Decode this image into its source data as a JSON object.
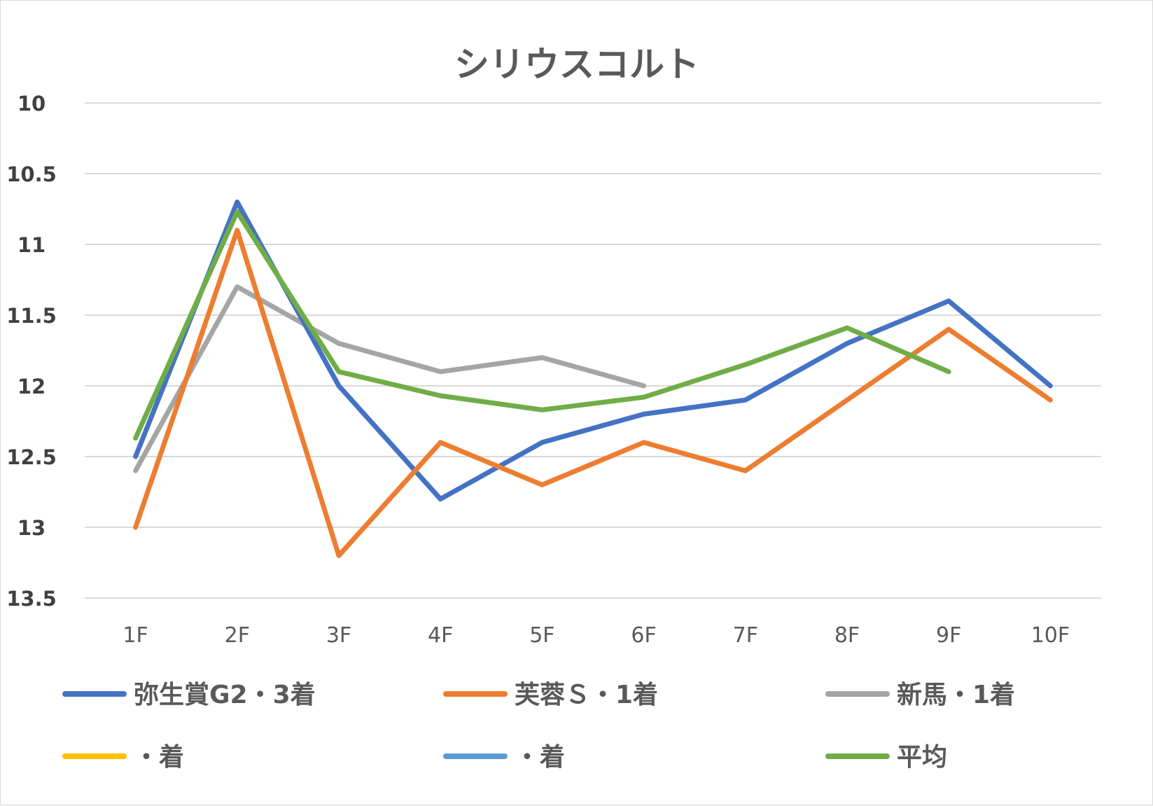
{
  "chart_data": {
    "type": "line",
    "title": "シリウスコルト",
    "categories": [
      "1F",
      "2F",
      "3F",
      "4F",
      "5F",
      "6F",
      "7F",
      "8F",
      "9F",
      "10F"
    ],
    "y_ticks": [
      "10",
      "10.5",
      "11",
      "11.5",
      "12",
      "12.5",
      "13",
      "13.5"
    ],
    "ylim": [
      10,
      13.5
    ],
    "y_reversed": true,
    "grid": true,
    "legend_position": "bottom",
    "series": [
      {
        "name": "弥生賞G2・3着",
        "color": "#4472c4",
        "values": [
          12.5,
          10.7,
          12.0,
          12.8,
          12.4,
          12.2,
          12.1,
          11.7,
          11.4,
          12.0
        ]
      },
      {
        "name": "芙蓉Ｓ・1着",
        "color": "#ed7d31",
        "values": [
          13.0,
          10.9,
          13.2,
          12.4,
          12.7,
          12.4,
          12.6,
          12.1,
          11.6,
          12.1
        ]
      },
      {
        "name": "新馬・1着",
        "color": "#a5a5a5",
        "values": [
          12.6,
          11.3,
          11.7,
          11.9,
          11.8,
          12.0,
          null,
          null,
          null,
          null
        ]
      },
      {
        "name": "・着",
        "color": "#ffc000",
        "values": [
          null,
          null,
          null,
          null,
          null,
          null,
          null,
          null,
          null,
          null
        ]
      },
      {
        "name": "・着",
        "color": "#5b9bd5",
        "values": [
          null,
          null,
          null,
          null,
          null,
          null,
          null,
          null,
          null,
          null
        ]
      },
      {
        "name": "平均",
        "color": "#70ad47",
        "values": [
          12.37,
          10.77,
          11.9,
          12.07,
          12.17,
          12.08,
          11.85,
          11.59,
          11.9,
          null
        ]
      }
    ]
  }
}
